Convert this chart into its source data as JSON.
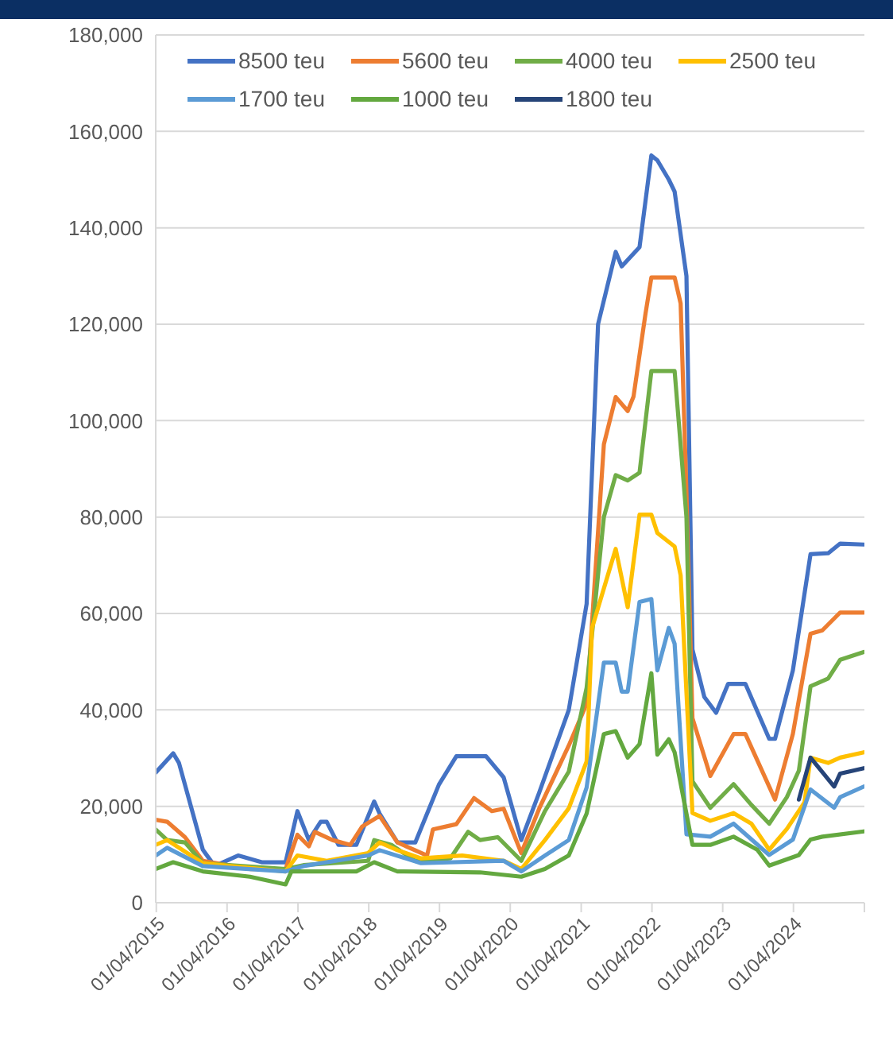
{
  "chart_data": {
    "type": "line",
    "legend": "top",
    "grid": "y",
    "marker": "none",
    "line_style": "solid",
    "xlim": [
      "2015-01-01",
      "2025-01-04"
    ],
    "xticks": [
      {
        "value": "2015-01-04",
        "label": "01/04/2015"
      },
      {
        "value": "2016-01-04",
        "label": "01/04/2016"
      },
      {
        "value": "2017-01-04",
        "label": "01/04/2017"
      },
      {
        "value": "2018-01-04",
        "label": "01/04/2018"
      },
      {
        "value": "2019-01-04",
        "label": "01/04/2019"
      },
      {
        "value": "2020-01-04",
        "label": "01/04/2020"
      },
      {
        "value": "2021-01-04",
        "label": "01/04/2021"
      },
      {
        "value": "2022-01-04",
        "label": "01/04/2022"
      },
      {
        "value": "2023-01-04",
        "label": "01/04/2023"
      },
      {
        "value": "2024-01-04",
        "label": "01/04/2024"
      },
      {
        "value": "2025-01-04",
        "label": null
      }
    ],
    "ylim": [
      0,
      180000
    ],
    "yticks": [
      {
        "value": 0,
        "label": "0"
      },
      {
        "value": 20000,
        "label": "20,000"
      },
      {
        "value": 40000,
        "label": "40,000"
      },
      {
        "value": 60000,
        "label": "60,000"
      },
      {
        "value": 80000,
        "label": "80,000"
      },
      {
        "value": 100000,
        "label": "100,000"
      },
      {
        "value": 120000,
        "label": "120,000"
      },
      {
        "value": 140000,
        "label": "140,000"
      },
      {
        "value": 160000,
        "label": "160,000"
      },
      {
        "value": 180000,
        "label": "180,000"
      }
    ],
    "series": [
      {
        "name": "8500 teu",
        "color": "#4472c4",
        "x": [
          "2015-01",
          "2015-04",
          "2015-05",
          "2015-09",
          "2015-11",
          "2016-03",
          "2016-07",
          "2016-11",
          "2017-01",
          "2017-03",
          "2017-05",
          "2017-06",
          "2017-08",
          "2017-11",
          "2018-02",
          "2018-03",
          "2018-06",
          "2018-09",
          "2019-01",
          "2019-04",
          "2019-09",
          "2019-12",
          "2020-03",
          "2020-06",
          "2020-11",
          "2021-02",
          "2021-04",
          "2021-07",
          "2021-08",
          "2021-11",
          "2022-01",
          "2022-02",
          "2022-04",
          "2022-05",
          "2022-07",
          "2022-08",
          "2022-10",
          "2022-12",
          "2023-02",
          "2023-05",
          "2023-09",
          "2023-10",
          "2024-01",
          "2024-04",
          "2024-07",
          "2024-09",
          "2025-01"
        ],
        "values": [
          27000,
          31000,
          29000,
          11000,
          7600,
          9800,
          8400,
          8400,
          19000,
          13000,
          16800,
          16800,
          12000,
          12000,
          21000,
          18500,
          12500,
          12500,
          24500,
          30400,
          30400,
          26000,
          13000,
          22800,
          40000,
          62000,
          120000,
          135000,
          132000,
          136000,
          155000,
          154000,
          150000,
          147500,
          130000,
          52500,
          42700,
          39400,
          45400,
          45400,
          34000,
          34000,
          48200,
          72300,
          72500,
          74500,
          74300
        ]
      },
      {
        "name": "5600 teu",
        "color": "#ed7d31",
        "x": [
          "2015-01",
          "2015-03",
          "2015-06",
          "2015-09",
          "2016-05",
          "2016-11",
          "2017-01",
          "2017-03",
          "2017-04",
          "2017-07",
          "2017-10",
          "2017-12",
          "2018-03",
          "2018-06",
          "2018-11",
          "2018-12",
          "2019-04",
          "2019-07",
          "2019-10",
          "2019-12",
          "2020-03",
          "2020-06",
          "2020-11",
          "2021-02",
          "2021-05",
          "2021-07",
          "2021-09",
          "2021-10",
          "2021-12",
          "2022-01",
          "2022-05",
          "2022-06",
          "2022-07",
          "2022-08",
          "2022-11",
          "2023-03",
          "2023-05",
          "2023-10",
          "2024-01",
          "2024-04",
          "2024-06",
          "2024-09",
          "2025-01"
        ],
        "values": [
          17200,
          16800,
          13600,
          8700,
          7000,
          7000,
          14100,
          11700,
          14700,
          13000,
          12000,
          15800,
          18000,
          12500,
          9800,
          15200,
          16300,
          21700,
          19000,
          19500,
          10300,
          19500,
          32600,
          41300,
          95100,
          104900,
          102000,
          105000,
          122000,
          129700,
          129700,
          124300,
          85000,
          38300,
          26300,
          35000,
          35000,
          21400,
          35000,
          55800,
          56500,
          60200,
          60200
        ]
      },
      {
        "name": "4000 teu",
        "color": "#70ad47",
        "x": [
          "2015-01",
          "2015-03",
          "2015-06",
          "2015-09",
          "2016-11",
          "2017-02",
          "2018-01",
          "2018-02",
          "2018-05",
          "2018-09",
          "2019-03",
          "2019-06",
          "2019-08",
          "2019-11",
          "2020-03",
          "2020-07",
          "2020-11",
          "2021-02",
          "2021-05",
          "2021-07",
          "2021-09",
          "2021-11",
          "2022-01",
          "2022-05",
          "2022-07",
          "2022-08",
          "2022-11",
          "2023-03",
          "2023-06",
          "2023-09",
          "2023-12",
          "2024-02",
          "2024-04",
          "2024-07",
          "2024-09",
          "2025-01"
        ],
        "values": [
          15200,
          13000,
          12500,
          8200,
          7000,
          7800,
          8700,
          13000,
          12000,
          8700,
          9200,
          14700,
          13000,
          13600,
          8700,
          19000,
          27200,
          44600,
          80000,
          88700,
          87600,
          89200,
          110300,
          110300,
          80000,
          25200,
          19700,
          24600,
          20300,
          16400,
          21900,
          27400,
          44900,
          46500,
          50400,
          52000
        ]
      },
      {
        "name": "2500 teu",
        "color": "#ffc000",
        "x": [
          "2015-01",
          "2015-03",
          "2015-09",
          "2016-11",
          "2017-01",
          "2017-06",
          "2018-01",
          "2018-03",
          "2018-06",
          "2018-10",
          "2019-05",
          "2019-12",
          "2020-03",
          "2020-07",
          "2020-11",
          "2021-02",
          "2021-03",
          "2021-07",
          "2021-09",
          "2021-11",
          "2022-01",
          "2022-02",
          "2022-05",
          "2022-06",
          "2022-08",
          "2022-11",
          "2023-03",
          "2023-06",
          "2023-09",
          "2023-12",
          "2024-03",
          "2024-04",
          "2024-07",
          "2024-09",
          "2025-01"
        ],
        "values": [
          12000,
          13000,
          8200,
          6500,
          9800,
          8700,
          10300,
          12500,
          10900,
          9200,
          9800,
          8700,
          7000,
          13000,
          19600,
          29300,
          57000,
          73400,
          61300,
          80500,
          80500,
          76700,
          73900,
          67900,
          18600,
          17000,
          18600,
          16400,
          11000,
          15300,
          20800,
          30100,
          29000,
          30100,
          31200
        ]
      },
      {
        "name": "1700 teu",
        "color": "#5b9bd5",
        "x": [
          "2015-01",
          "2015-03",
          "2015-09",
          "2016-11",
          "2017-02",
          "2018-01",
          "2018-03",
          "2018-10",
          "2019-12",
          "2020-03",
          "2020-07",
          "2020-11",
          "2021-02",
          "2021-05",
          "2021-07",
          "2021-08",
          "2021-09",
          "2021-11",
          "2022-01",
          "2022-02",
          "2022-04",
          "2022-05",
          "2022-07",
          "2022-11",
          "2023-03",
          "2023-09",
          "2024-01",
          "2024-04",
          "2024-08",
          "2024-09",
          "2025-01"
        ],
        "values": [
          9800,
          11400,
          7600,
          6500,
          7600,
          9800,
          10900,
          8200,
          8700,
          6500,
          9800,
          13000,
          23900,
          49800,
          49800,
          43800,
          43800,
          62400,
          63000,
          48200,
          57000,
          53700,
          14200,
          13700,
          16400,
          9900,
          13100,
          23500,
          19700,
          21900,
          24100
        ]
      },
      {
        "name": "1000 teu",
        "color": "#63a83f",
        "x": [
          "2015-01",
          "2015-04",
          "2015-09",
          "2016-05",
          "2016-11",
          "2016-12",
          "2017-11",
          "2018-02",
          "2018-06",
          "2019-08",
          "2020-03",
          "2020-07",
          "2020-11",
          "2021-02",
          "2021-05",
          "2021-07",
          "2021-09",
          "2021-11",
          "2022-01",
          "2022-02",
          "2022-04",
          "2022-05",
          "2022-08",
          "2022-11",
          "2023-03",
          "2023-07",
          "2023-09",
          "2024-02",
          "2024-04",
          "2024-06",
          "2025-01"
        ],
        "values": [
          7000,
          8400,
          6500,
          5400,
          3800,
          6500,
          6500,
          8400,
          6500,
          6300,
          5400,
          7000,
          9800,
          18500,
          35000,
          35600,
          30100,
          32900,
          47600,
          30700,
          33900,
          31200,
          12000,
          12000,
          13700,
          11000,
          7700,
          9900,
          13100,
          13700,
          14800
        ]
      },
      {
        "name": "1800 teu",
        "color": "#264478",
        "x": [
          "2024-02",
          "2024-04",
          "2024-08",
          "2024-09",
          "2025-01"
        ],
        "values": [
          21400,
          30100,
          24100,
          26800,
          27900
        ]
      }
    ]
  }
}
